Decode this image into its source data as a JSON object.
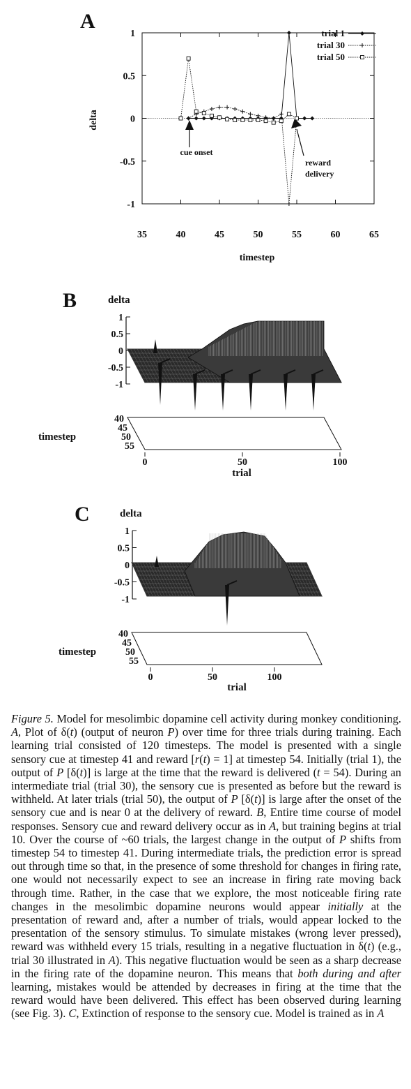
{
  "panel_a": {
    "label": "A",
    "chart_data": {
      "type": "line",
      "xlabel": "timestep",
      "ylabel": "delta",
      "xlim": [
        35,
        65
      ],
      "ylim": [
        -1,
        1
      ],
      "x_ticks": [
        "35",
        "40",
        "45",
        "50",
        "55",
        "60",
        "65"
      ],
      "y_ticks": [
        "1",
        "0.5",
        "0",
        "-0.5",
        "-1"
      ],
      "legend": "top-right",
      "series": [
        {
          "name": "trial 1",
          "marker": "diamond",
          "dash": "solid",
          "x": [
            41,
            42,
            43,
            44,
            45,
            46,
            47,
            48,
            49,
            50,
            51,
            52,
            53,
            54,
            55,
            56,
            57
          ],
          "y": [
            0,
            0,
            0,
            0,
            0,
            0,
            0,
            0,
            0,
            0,
            0,
            0,
            0,
            1,
            0,
            0,
            0
          ]
        },
        {
          "name": "trial 30",
          "marker": "plus",
          "dash": "dotted",
          "x": [
            41,
            42,
            43,
            44,
            45,
            46,
            47,
            48,
            49,
            50,
            51,
            52,
            53,
            54,
            55
          ],
          "y": [
            0,
            0.05,
            0.08,
            0.11,
            0.13,
            0.13,
            0.11,
            0.08,
            0.05,
            0.03,
            0.01,
            0,
            0.05,
            -1,
            0
          ]
        },
        {
          "name": "trial 50",
          "marker": "square",
          "dash": "dotted",
          "x": [
            40,
            41,
            42,
            43,
            44,
            45,
            46,
            47,
            48,
            49,
            50,
            51,
            52,
            53,
            54,
            55
          ],
          "y": [
            0,
            0.7,
            0.08,
            0.06,
            0.03,
            0.01,
            -0.01,
            -0.02,
            -0.02,
            -0.02,
            -0.02,
            -0.03,
            -0.05,
            -0.03,
            0.05,
            0
          ]
        }
      ],
      "annotations": [
        {
          "text": "cue onset",
          "x": 41
        },
        {
          "text": "reward delivery",
          "x": 54
        }
      ]
    }
  },
  "panel_b": {
    "label": "B",
    "zlabel": "delta",
    "ylabel": "timestep",
    "xlabel": "trial",
    "z_ticks": [
      "1",
      "0.5",
      "0",
      "-0.5",
      "-1"
    ],
    "y_ticks": [
      "40",
      "45",
      "50",
      "55"
    ],
    "x_ticks": [
      "0",
      "50",
      "100"
    ]
  },
  "panel_c": {
    "label": "C",
    "zlabel": "delta",
    "ylabel": "timestep",
    "xlabel": "trial",
    "z_ticks": [
      "1",
      "0.5",
      "0",
      "-0.5",
      "-1"
    ],
    "y_ticks": [
      "40",
      "45",
      "50",
      "55"
    ],
    "x_ticks": [
      "0",
      "50",
      "100"
    ]
  },
  "caption": {
    "fig_label": "Figure 5.",
    "p1": " Model for mesolimbic dopamine cell activity during monkey conditioning. ",
    "a_label": "A",
    "p2": ", Plot of δ(",
    "t1": "t",
    "p3": ") (output of neuron ",
    "P1": "P",
    "p4": ") over time for three trials during training. Each learning trial consisted of 120 timesteps. The model is presented with a single sensory cue at timestep 41 and reward [",
    "r": "r",
    "p5": "(",
    "t2": "t",
    "p6": ") = 1] at timestep 54. Initially (trial 1), the output of ",
    "P2": "P",
    "p7": " [δ(",
    "t3": "t",
    "p8": ")] is large at the time that the reward is delivered (",
    "t4": "t",
    "p9": " = 54). During an intermediate trial (trial 30), the sensory cue is presented as before but the reward is withheld. At later trials (trial 50), the output of ",
    "P3": "P",
    "p10": " [δ(",
    "t5": "t",
    "p11": ")] is large after the onset of the sensory cue and is near 0 at the delivery of reward. ",
    "b_label": "B",
    "p12": ", Entire time course of model responses. Sensory cue and reward delivery occur as in ",
    "a_ref1": "A",
    "p13": ", but training begins at trial 10. Over the course of ~60 trials, the largest change in the output of ",
    "P4": "P",
    "p14": " shifts from timestep 54 to timestep 41. During intermediate trials, the prediction error is spread out through time so that, in the presence of some threshold for changes in firing rate, one would not necessarily expect to see an increase in firing rate moving back through time. Rather, in the case that we explore, the most noticeable firing rate changes in the mesolimbic dopamine neurons would appear ",
    "initially": "initially",
    "p15": " at the presentation of reward and, after a number of trials, would appear locked to the presentation of the sensory stimulus. To simulate mistakes (wrong lever pressed), reward was withheld every 15 trials, resulting in a negative fluctuation in δ(",
    "t6": "t",
    "p16": ") (e.g., trial 30 illustrated in ",
    "a_ref2": "A",
    "p17": "). This negative fluctuation would be seen as a sharp decrease in the firing rate of the dopamine neuron. This means that ",
    "both": "both during and after",
    "p18": " learning, mistakes would be attended by decreases in firing at the time that the reward would have been delivered. This effect has been observed during learning (see Fig. 3). ",
    "c_label": "C",
    "p19": ", Extinction of response to the sensory cue. Model is trained as in ",
    "a_ref3": "A"
  }
}
